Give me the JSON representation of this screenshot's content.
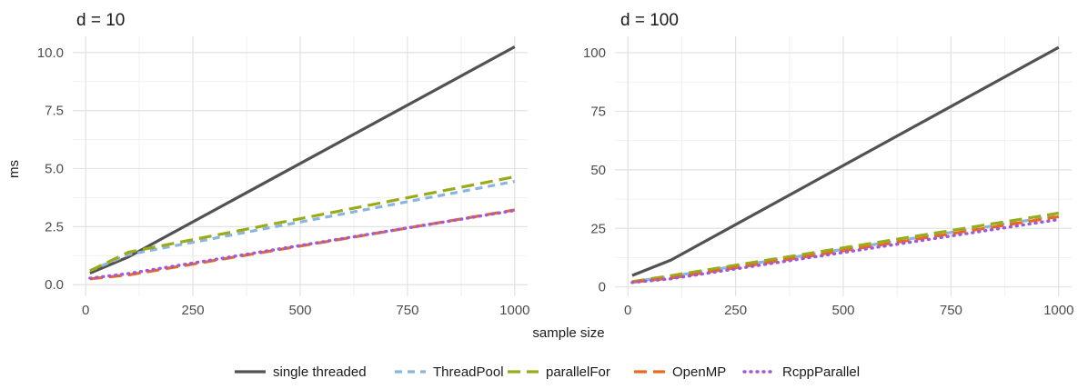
{
  "figure": {
    "xlabel": "sample size",
    "ylabel": "ms"
  },
  "legend": {
    "position": "bottom",
    "items": [
      {
        "name": "single threaded",
        "color": "#525252",
        "dash": "solid"
      },
      {
        "name": "ThreadPool",
        "color": "#8ab6dd",
        "dash": "dashed"
      },
      {
        "name": "parallelFor",
        "color": "#9aab1a",
        "dash": "longdash"
      },
      {
        "name": "OpenMP",
        "color": "#e86a1f",
        "dash": "longdash"
      },
      {
        "name": "RcppParallel",
        "color": "#a05ad8",
        "dash": "dotted"
      }
    ]
  },
  "chart_data": [
    {
      "type": "line",
      "title": "d = 10",
      "xlabel": "sample size",
      "ylabel": "ms",
      "xlim": [
        -30,
        1030
      ],
      "ylim": [
        -0.5,
        10.7
      ],
      "xticks": [
        "0",
        "250",
        "500",
        "750",
        "1000"
      ],
      "xtick_values": [
        0,
        250,
        500,
        750,
        1000
      ],
      "yticks": [
        "0.0",
        "2.5",
        "5.0",
        "7.5",
        "10.0"
      ],
      "ytick_values": [
        0,
        2.5,
        5,
        7.5,
        10
      ],
      "grid": true,
      "series": [
        {
          "name": "single threaded",
          "x": [
            10,
            100,
            1000
          ],
          "y": [
            0.5,
            1.2,
            10.25
          ]
        },
        {
          "name": "ThreadPool",
          "x": [
            10,
            100,
            1000
          ],
          "y": [
            0.6,
            1.3,
            4.45
          ]
        },
        {
          "name": "parallelFor",
          "x": [
            10,
            100,
            1000
          ],
          "y": [
            0.6,
            1.4,
            4.65
          ]
        },
        {
          "name": "OpenMP",
          "x": [
            10,
            100,
            1000
          ],
          "y": [
            0.25,
            0.42,
            3.22
          ]
        },
        {
          "name": "RcppParallel",
          "x": [
            10,
            100,
            1000
          ],
          "y": [
            0.28,
            0.48,
            3.2
          ]
        }
      ]
    },
    {
      "type": "line",
      "title": "d = 100",
      "xlabel": "sample size",
      "ylabel": "ms",
      "xlim": [
        -30,
        1030
      ],
      "ylim": [
        -4,
        107
      ],
      "xticks": [
        "0",
        "250",
        "500",
        "750",
        "1000"
      ],
      "xtick_values": [
        0,
        250,
        500,
        750,
        1000
      ],
      "yticks": [
        "0",
        "25",
        "50",
        "75",
        "100"
      ],
      "ytick_values": [
        0,
        25,
        50,
        75,
        100
      ],
      "grid": true,
      "series": [
        {
          "name": "single threaded",
          "x": [
            10,
            100,
            1000
          ],
          "y": [
            4.9,
            11.5,
            102.3
          ]
        },
        {
          "name": "ThreadPool",
          "x": [
            10,
            100,
            1000
          ],
          "y": [
            2.2,
            4.5,
            30.5
          ]
        },
        {
          "name": "parallelFor",
          "x": [
            10,
            100,
            1000
          ],
          "y": [
            2.3,
            4.8,
            31.5
          ]
        },
        {
          "name": "OpenMP",
          "x": [
            10,
            100,
            1000
          ],
          "y": [
            2.0,
            3.8,
            30.0
          ]
        },
        {
          "name": "RcppParallel",
          "x": [
            10,
            100,
            1000
          ],
          "y": [
            1.9,
            3.5,
            28.8
          ]
        }
      ]
    }
  ]
}
